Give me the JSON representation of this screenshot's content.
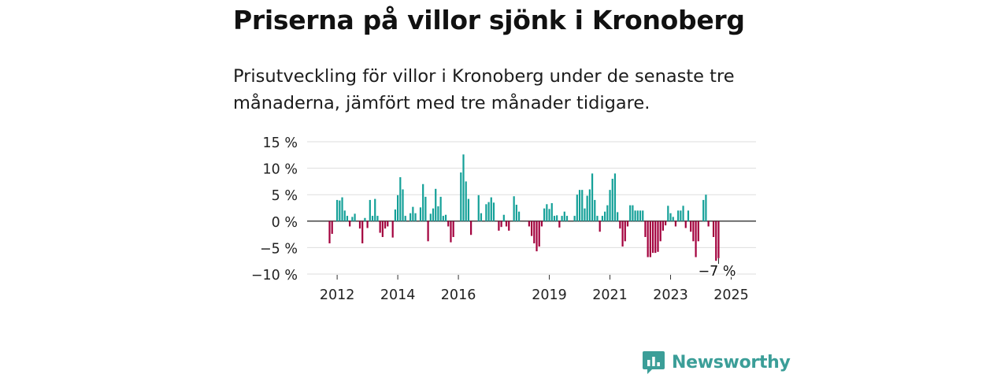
{
  "header": {
    "title": "Priserna på villor sjönk i Kronoberg",
    "subtitle": "Prisutveckling för villor i Kronoberg under de senaste tre månaderna, jämfört med tre månader tidigare."
  },
  "brand": {
    "name": "Newsworthy",
    "icon": "newsworthy-logo-icon",
    "color": "#3b9e98"
  },
  "colors": {
    "positive": "#14a098",
    "negative": "#a3003d"
  },
  "chart_data": {
    "type": "bar",
    "title": "",
    "xlabel": "",
    "ylabel": "",
    "ylim": [
      -10,
      15
    ],
    "yticks": [
      15,
      10,
      5,
      0,
      -5,
      -10
    ],
    "ytick_labels": [
      "15 %",
      "10 %",
      "5 %",
      "0 %",
      "−5 %",
      "−10 %"
    ],
    "xtick_labels": [
      "2012",
      "2014",
      "2016",
      "2019",
      "2021",
      "2023",
      "2025"
    ],
    "xtick_years": [
      2012,
      2014,
      2016,
      2019,
      2021,
      2023,
      2025
    ],
    "grid": true,
    "legend": "none",
    "start": "2011-10",
    "frequency": "monthly",
    "annotation": {
      "text": "−7 %",
      "target": "last"
    },
    "values": [
      -4.2,
      -2.4,
      0,
      4.0,
      3.9,
      4.5,
      2.0,
      1.0,
      -1.0,
      0.8,
      1.4,
      0,
      -1.4,
      -4.2,
      0.6,
      -1.3,
      4.0,
      1.0,
      4.2,
      1.0,
      -2.2,
      -3.0,
      -1.4,
      -1.0,
      0,
      -3.1,
      2.2,
      4.9,
      8.3,
      6.0,
      1.0,
      0,
      1.5,
      2.7,
      1.5,
      0,
      2.6,
      7.0,
      4.6,
      -3.8,
      1.4,
      2.4,
      6.1,
      2.8,
      4.6,
      1.0,
      1.2,
      -1.0,
      -4.0,
      -3.0,
      0,
      0,
      9.2,
      12.6,
      7.5,
      4.2,
      -2.6,
      0,
      0,
      4.9,
      1.5,
      0,
      3.2,
      3.6,
      4.5,
      3.5,
      0,
      -1.8,
      -1.1,
      1.2,
      -1.0,
      -1.8,
      0,
      4.7,
      3.1,
      1.8,
      0,
      0,
      0,
      -1.0,
      -2.8,
      -4.2,
      -5.7,
      -4.8,
      -1.0,
      2.4,
      3.2,
      2.3,
      3.4,
      1.0,
      1.1,
      -1.2,
      1.0,
      1.8,
      1.0,
      0,
      0,
      1.0,
      5.0,
      5.9,
      5.9,
      2.4,
      4.8,
      6.0,
      9.0,
      4.0,
      1.0,
      -2.0,
      1.0,
      1.8,
      3.0,
      5.9,
      8.0,
      9.0,
      1.7,
      -1.4,
      -4.8,
      -3.8,
      -1.0,
      3.0,
      3.0,
      2.0,
      2.0,
      2.0,
      2.0,
      -3.0,
      -6.8,
      -6.8,
      -6.0,
      -6.0,
      -5.8,
      -3.8,
      -1.8,
      -0.8,
      2.9,
      1.5,
      0.8,
      -1.0,
      2.0,
      2.0,
      2.9,
      -1.3,
      2.0,
      -2.0,
      -3.8,
      -6.8,
      -3.8,
      0,
      4.0,
      5.0,
      -1.0,
      0,
      -3.0,
      -7.5,
      -7.0
    ]
  }
}
